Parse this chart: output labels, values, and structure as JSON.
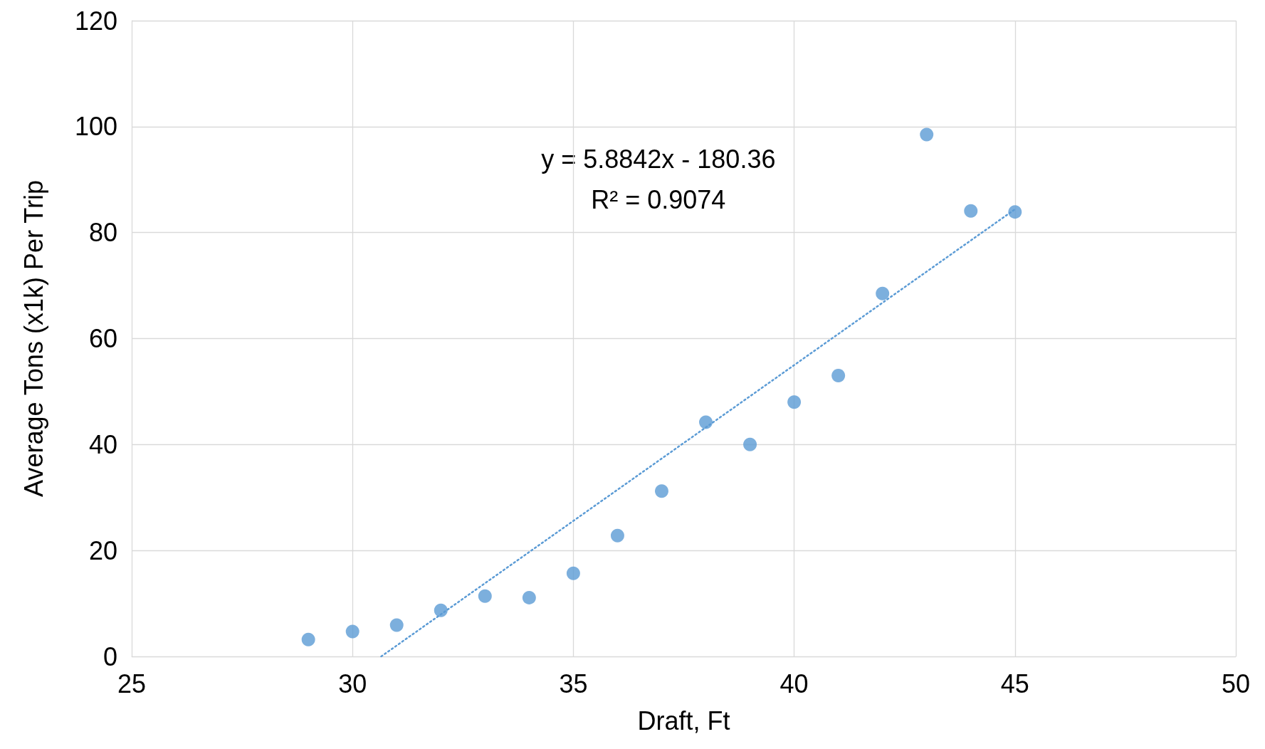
{
  "chart_data": {
    "type": "scatter",
    "xlabel": "Draft, Ft",
    "ylabel": "Average Tons (x1k) Per Trip",
    "annotations": [
      "y = 5.8842x - 180.36",
      "R² = 0.9074"
    ],
    "series": [
      {
        "color": "#5b9bd5",
        "x": [
          29,
          30,
          31,
          32,
          33,
          34,
          35,
          36,
          37,
          38,
          39,
          40,
          41,
          42,
          43,
          44,
          45
        ],
        "values": [
          3.2,
          4.7,
          5.9,
          8.7,
          11.4,
          11.1,
          15.7,
          22.8,
          31.2,
          44.2,
          40.0,
          48.0,
          53.0,
          68.5,
          98.5,
          84.1,
          83.9
        ]
      },
      {
        "type": "line",
        "color": "#5b9bd5",
        "line_style": "dotted",
        "marker": "none",
        "x": [
          30.65,
          45
        ],
        "values": [
          0,
          84.4
        ]
      }
    ],
    "xlim": [
      25,
      50
    ],
    "xticks": [
      25,
      30,
      35,
      40,
      45,
      50
    ],
    "ylim": [
      0,
      120
    ],
    "yticks": [
      0,
      20,
      40,
      60,
      80,
      100,
      120
    ],
    "grid": true,
    "marker": "circle"
  }
}
